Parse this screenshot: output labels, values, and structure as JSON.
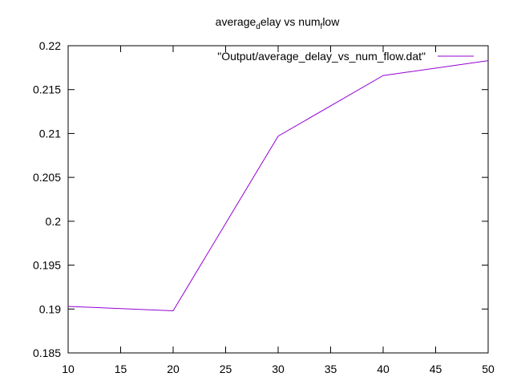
{
  "chart_data": {
    "type": "line",
    "title": {
      "parts": [
        {
          "text": "average",
          "sub": false
        },
        {
          "text": "d",
          "sub": true
        },
        {
          "text": "elay vs num",
          "sub": false
        },
        {
          "text": "f",
          "sub": true
        },
        {
          "text": "low",
          "sub": false
        }
      ]
    },
    "xlabel": "",
    "ylabel": "",
    "xlim": [
      10,
      50
    ],
    "ylim": [
      0.185,
      0.22
    ],
    "xticks": [
      "10",
      "15",
      "20",
      "25",
      "30",
      "35",
      "40",
      "45",
      "50"
    ],
    "yticks": [
      "0.185",
      "0.19",
      "0.195",
      "0.2",
      "0.205",
      "0.21",
      "0.215",
      "0.22"
    ],
    "grid": false,
    "legend_position": "top-right",
    "series": [
      {
        "name": "\"Output/average_delay_vs_num_flow.dat\"",
        "color": "#9400d3",
        "x": [
          10,
          20,
          30,
          40,
          50
        ],
        "y": [
          0.1903,
          0.1898,
          0.2097,
          0.2166,
          0.2183
        ]
      }
    ]
  }
}
